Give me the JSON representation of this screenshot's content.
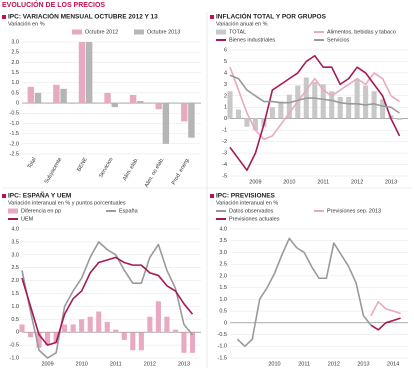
{
  "header": "EVOLUCIÓN DE LOS PRECIOS",
  "chart_data": [
    {
      "type": "bar",
      "title": "IPC: VARIACIÓN MENSUAL OCTUBRE 2012 Y 13",
      "subtitle": "Variación en %",
      "categories": [
        "Total",
        "Subyacente",
        "BENE",
        "Servicios",
        "Alim. elab.",
        "Alim. no elab.",
        "Prod. energ."
      ],
      "series": [
        {
          "name": "Octubre 2012",
          "color": "#e8a9c2",
          "values": [
            0.8,
            0.9,
            3.0,
            0.5,
            0.4,
            -0.3,
            -0.9
          ]
        },
        {
          "name": "Octubre 2013",
          "color": "#b5b5b5",
          "values": [
            0.5,
            0.7,
            3.0,
            -0.2,
            0.1,
            -2.0,
            -1.7
          ]
        }
      ],
      "ylim": [
        -2.5,
        3.0
      ],
      "yticks": [
        {
          "value": 3.0,
          "label": "3.0"
        },
        {
          "value": 2.5,
          "label": "2.5"
        },
        {
          "value": 2.0,
          "label": "2.0"
        },
        {
          "value": 1.5,
          "label": "1.5"
        },
        {
          "value": 1.0,
          "label": "1.0"
        },
        {
          "value": 0.5,
          "label": "0.5"
        },
        0,
        {
          "value": -0.5,
          "label": "-0.5"
        },
        {
          "value": -1.0,
          "label": "-1.0"
        },
        {
          "value": -1.5,
          "label": "-1.5"
        },
        {
          "value": -2.0,
          "label": "-2.0"
        },
        {
          "value": -2.5,
          "label": "-2.5"
        }
      ],
      "grid": true
    },
    {
      "type": "line",
      "title": "INFLACIÓN TOTAL Y POR GRUPOS",
      "subtitle": "Variación anual en %",
      "x": [
        2008.75,
        2009,
        2009.25,
        2009.5,
        2009.75,
        2010,
        2010.25,
        2010.5,
        2010.75,
        2011,
        2011.25,
        2011.5,
        2011.75,
        2012,
        2012.25,
        2012.5,
        2012.75,
        2013,
        2013.25,
        2013.5,
        2013.75
      ],
      "series": [
        {
          "name": "TOTAL",
          "style": "bar",
          "color": "#c8c8c8",
          "values": [
            2.4,
            0.8,
            -0.7,
            -1.0,
            -0.7,
            1.0,
            1.5,
            2.1,
            2.9,
            3.6,
            3.2,
            3.0,
            2.4,
            1.9,
            1.9,
            3.4,
            2.9,
            2.4,
            1.7,
            0.3,
            -0.1
          ]
        },
        {
          "name": "Alimentos, bebidas y tabaco",
          "style": "line",
          "color": "#e8a9c2",
          "values": [
            4.5,
            2.5,
            0.5,
            -1.0,
            -1.8,
            -1.5,
            -0.5,
            0.5,
            1.5,
            2.5,
            3.5,
            2.5,
            2.0,
            2.5,
            3.0,
            3.5,
            3.0,
            4.0,
            3.5,
            2.0,
            1.5
          ]
        },
        {
          "name": "Bienes industriales",
          "style": "line",
          "color": "#a5195a",
          "values": [
            -2.5,
            -3.5,
            -4.5,
            -3.0,
            -0.5,
            2.5,
            3.0,
            3.5,
            4.0,
            5.0,
            5.5,
            4.5,
            4.5,
            3.0,
            3.5,
            4.5,
            4.0,
            3.0,
            2.0,
            0.0,
            -1.5
          ]
        },
        {
          "name": "Servicios",
          "style": "line",
          "color": "#9a9a9a",
          "values": [
            3.8,
            3.5,
            2.5,
            2.0,
            1.5,
            1.5,
            1.4,
            1.4,
            1.6,
            1.8,
            1.8,
            1.7,
            1.6,
            1.4,
            1.3,
            1.3,
            1.2,
            1.3,
            1.1,
            1.0,
            0.5
          ]
        }
      ],
      "xlim": [
        2008.75,
        2014
      ],
      "xticks": [
        {
          "value": 2009.5,
          "label": "2009"
        },
        {
          "value": 2010.5,
          "label": "2010"
        },
        {
          "value": 2011.5,
          "label": "2011"
        },
        {
          "value": 2012.5,
          "label": "2012"
        },
        {
          "value": 2013.5,
          "label": "2013"
        }
      ],
      "ylim": [
        -5,
        6
      ],
      "yticks": [
        6,
        5,
        4,
        3,
        2,
        1,
        0,
        -1,
        -2,
        -3,
        -4,
        -5
      ],
      "grid": true
    },
    {
      "type": "line",
      "title": "IPC: ESPAÑA Y UEM",
      "subtitle": "Variación interanual en % y puntos porcentuales",
      "x": [
        2008.75,
        2009,
        2009.25,
        2009.5,
        2009.75,
        2010,
        2010.25,
        2010.5,
        2010.75,
        2011,
        2011.25,
        2011.5,
        2011.75,
        2012,
        2012.25,
        2012.5,
        2012.75,
        2013,
        2013.25,
        2013.5,
        2013.75
      ],
      "series": [
        {
          "name": "Diferencia en pp",
          "style": "bar",
          "color": "#e8a9c2",
          "values": [
            0.3,
            -0.2,
            -0.6,
            -0.5,
            -0.4,
            0.3,
            0.3,
            0.5,
            0.6,
            0.8,
            0.4,
            0.1,
            -0.3,
            -0.7,
            -0.7,
            0.6,
            1.2,
            0.6,
            0.1,
            -0.8,
            -0.8
          ]
        },
        {
          "name": "España",
          "style": "line",
          "color": "#9a9a9a",
          "values": [
            2.4,
            0.8,
            -0.7,
            -1.0,
            -0.8,
            1.0,
            1.6,
            2.1,
            2.9,
            3.5,
            3.2,
            3.0,
            2.4,
            1.9,
            1.9,
            2.9,
            3.4,
            2.4,
            1.7,
            0.3,
            -0.1
          ]
        },
        {
          "name": "UEM",
          "style": "line",
          "color": "#a5195a",
          "values": [
            2.1,
            1.0,
            -0.1,
            -0.5,
            -0.4,
            0.7,
            1.3,
            1.6,
            2.3,
            2.7,
            2.8,
            2.9,
            2.7,
            2.6,
            2.6,
            2.3,
            2.2,
            1.8,
            1.6,
            1.1,
            0.7
          ]
        }
      ],
      "xlim": [
        2008.75,
        2014
      ],
      "xticks": [
        {
          "value": 2009.5,
          "label": "2009"
        },
        {
          "value": 2010.5,
          "label": "2010"
        },
        {
          "value": 2011.5,
          "label": "2011"
        },
        {
          "value": 2012.5,
          "label": "2012"
        },
        {
          "value": 2013.5,
          "label": "2013"
        }
      ],
      "ylim": [
        -1.0,
        4.0
      ],
      "yticks": [
        {
          "value": 4.0,
          "label": "4.0"
        },
        {
          "value": 3.5,
          "label": "3.5"
        },
        {
          "value": 3.0,
          "label": "3.0"
        },
        {
          "value": 2.5,
          "label": "2.5"
        },
        {
          "value": 2.0,
          "label": "2.0"
        },
        {
          "value": 1.5,
          "label": "1.5"
        },
        {
          "value": 1.0,
          "label": "1.0"
        },
        {
          "value": 0.5,
          "label": "0.5"
        },
        0,
        {
          "value": -0.5,
          "label": "-0.5"
        },
        {
          "value": -1.0,
          "label": "-1.0"
        }
      ],
      "grid": true
    },
    {
      "type": "line",
      "title": "IPC: PREVISIONES",
      "subtitle": "Variación interanual en %",
      "x": [
        2009.25,
        2009.5,
        2009.75,
        2010,
        2010.25,
        2010.5,
        2010.75,
        2011,
        2011.25,
        2011.5,
        2011.75,
        2012,
        2012.25,
        2012.5,
        2012.75,
        2013,
        2013.25,
        2013.5,
        2013.75,
        2014,
        2014.25,
        2014.5,
        2014.75
      ],
      "series": [
        {
          "name": "Datos observados",
          "style": "line",
          "color": "#9a9a9a",
          "values": [
            -0.7,
            -1.0,
            -0.7,
            1.0,
            1.5,
            2.1,
            2.9,
            3.6,
            3.2,
            3.0,
            2.4,
            1.9,
            1.9,
            3.4,
            2.9,
            2.4,
            1.7,
            0.3,
            -0.1,
            null,
            null,
            null,
            null
          ]
        },
        {
          "name": "Previsiones sep. 2013",
          "style": "line",
          "color": "#e8a9c2",
          "values": [
            null,
            null,
            null,
            null,
            null,
            null,
            null,
            null,
            null,
            null,
            null,
            null,
            null,
            null,
            null,
            null,
            null,
            null,
            0.3,
            0.9,
            0.6,
            0.5,
            0.4
          ]
        },
        {
          "name": "Previsiones actuales",
          "style": "line",
          "color": "#a5195a",
          "values": [
            null,
            null,
            null,
            null,
            null,
            null,
            null,
            null,
            null,
            null,
            null,
            null,
            null,
            null,
            null,
            null,
            null,
            null,
            -0.1,
            -0.3,
            0.0,
            0.1,
            0.2
          ]
        }
      ],
      "xlim": [
        2009,
        2015
      ],
      "xticks": [
        {
          "value": 2010.5,
          "label": "2010"
        },
        {
          "value": 2011.5,
          "label": "2011"
        },
        {
          "value": 2012.5,
          "label": "2012"
        },
        {
          "value": 2013.5,
          "label": "2013"
        },
        {
          "value": 2014.5,
          "label": "2014"
        }
      ],
      "ylim": [
        -1.5,
        4.0
      ],
      "yticks": [
        {
          "value": 4.0,
          "label": "4.0"
        },
        {
          "value": 3.5,
          "label": "3.5"
        },
        {
          "value": 3.0,
          "label": "3.0"
        },
        {
          "value": 2.5,
          "label": "2.5"
        },
        {
          "value": 2.0,
          "label": "2.0"
        },
        {
          "value": 1.5,
          "label": "1.5"
        },
        {
          "value": 1.0,
          "label": "1.0"
        },
        {
          "value": 0.5,
          "label": "0.5"
        },
        0,
        {
          "value": -0.5,
          "label": "-0.5"
        },
        {
          "value": -1.0,
          "label": "-1.0"
        },
        {
          "value": -1.5,
          "label": "-1.5"
        }
      ],
      "grid": true
    }
  ]
}
